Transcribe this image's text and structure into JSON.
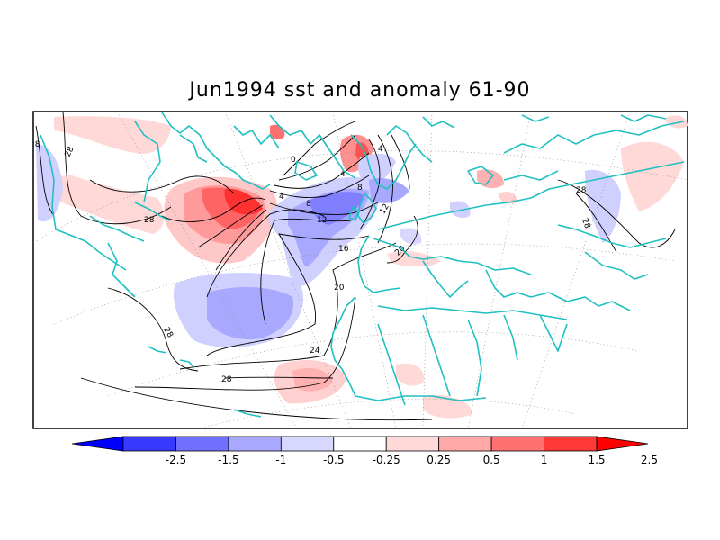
{
  "title": "Jun1994 sst and anomaly 61-90",
  "map": {
    "contour_labels": [
      "28",
      "28",
      "28",
      "28",
      "28",
      "28",
      "0",
      "4",
      "4",
      "8",
      "8",
      "12",
      "12",
      "16",
      "20",
      "20",
      "24",
      "28",
      "4"
    ]
  },
  "colorbar": {
    "labels": [
      "-2.5",
      "-1.5",
      "-1",
      "-0.5",
      "-0.25",
      "0.25",
      "0.5",
      "1",
      "1.5",
      "2.5"
    ],
    "colors": [
      "#0000ff",
      "#3838ff",
      "#7070ff",
      "#a8a8ff",
      "#d8d8ff",
      "#ffffff",
      "#ffd8d8",
      "#ffa8a8",
      "#ff7070",
      "#ff3838",
      "#ff0000"
    ]
  },
  "colors": {
    "coast": "#20c0c0",
    "positive": "#ff4040",
    "negative": "#5050ff"
  }
}
